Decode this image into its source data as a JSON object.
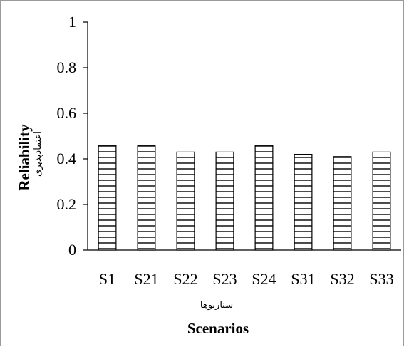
{
  "chart_data": {
    "type": "bar",
    "categories": [
      "S1",
      "S21",
      "S22",
      "S23",
      "S24",
      "S31",
      "S32",
      "S33"
    ],
    "values": [
      0.46,
      0.46,
      0.43,
      0.43,
      0.46,
      0.42,
      0.41,
      0.43
    ],
    "title": "",
    "xlabel": "Scenarios",
    "xlabel_secondary": "سناریوها",
    "ylabel": "Reliability",
    "ylabel_secondary": "اعتمادپذیری",
    "ylim": [
      0,
      1
    ],
    "yticks": [
      0,
      0.2,
      0.4,
      0.6,
      0.8,
      1
    ],
    "ytick_labels": [
      "0",
      "0.2",
      "0.4",
      "0.6",
      "0.8",
      "1"
    ],
    "grid": false,
    "legend": "none",
    "bar_fill": "horizontal-stripes",
    "bar_color": "#000000"
  }
}
